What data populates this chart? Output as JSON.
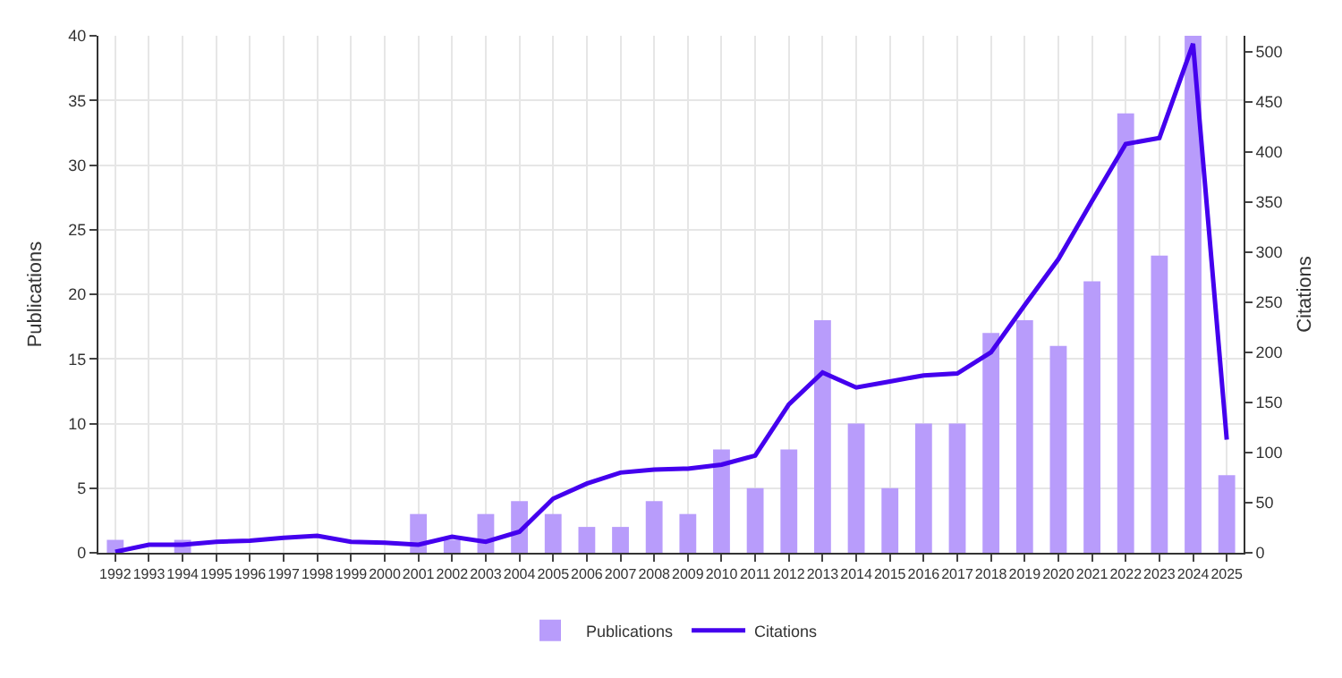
{
  "chart_data": {
    "type": "bar",
    "ylabel": "Publications",
    "y2label": "Citations",
    "categories": [
      "1992",
      "1993",
      "1994",
      "1995",
      "1996",
      "1997",
      "1998",
      "1999",
      "2000",
      "2001",
      "2002",
      "2003",
      "2004",
      "2005",
      "2006",
      "2007",
      "2008",
      "2009",
      "2010",
      "2011",
      "2012",
      "2013",
      "2014",
      "2015",
      "2016",
      "2017",
      "2018",
      "2019",
      "2020",
      "2021",
      "2022",
      "2023",
      "2024",
      "2025"
    ],
    "series": [
      {
        "name": "Publications",
        "color": "#b89cfb",
        "values": [
          1,
          0,
          1,
          0,
          0,
          0,
          0,
          0,
          0,
          3,
          1,
          3,
          4,
          3,
          2,
          2,
          4,
          3,
          8,
          5,
          8,
          18,
          10,
          5,
          10,
          10,
          17,
          18,
          16,
          21,
          34,
          23,
          40,
          6
        ]
      },
      {
        "name": "Citations",
        "type": "line",
        "axis": "y2",
        "color": "#4400ee",
        "values": [
          1,
          8,
          8,
          11,
          12,
          15,
          17,
          11,
          10,
          8,
          16,
          11,
          21,
          54,
          69,
          80,
          83,
          84,
          88,
          97,
          148,
          180,
          165,
          171,
          177,
          179,
          200,
          247,
          293,
          351,
          408,
          414,
          508,
          113
        ]
      }
    ],
    "ylim": [
      0,
      40
    ],
    "yticks": [
      0,
      5,
      10,
      15,
      20,
      25,
      30,
      35,
      40
    ],
    "y2lim": [
      0,
      516
    ],
    "y2ticks": [
      0,
      50,
      100,
      150,
      200,
      250,
      300,
      350,
      400,
      450,
      500
    ],
    "grid": true,
    "legend": "bottom",
    "marker": "none",
    "line_style": "solid"
  }
}
